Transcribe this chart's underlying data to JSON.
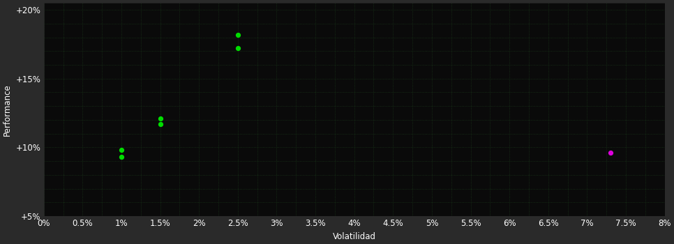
{
  "background_color": "#2a2a2a",
  "plot_bg_color": "#0a0a0a",
  "text_color": "#ffffff",
  "xlabel": "Volatilidad",
  "ylabel": "Performance",
  "xlim": [
    0.0,
    0.08
  ],
  "ylim": [
    0.05,
    0.205
  ],
  "x_ticks": [
    0.0,
    0.005,
    0.01,
    0.015,
    0.02,
    0.025,
    0.03,
    0.035,
    0.04,
    0.045,
    0.05,
    0.055,
    0.06,
    0.065,
    0.07,
    0.075,
    0.08
  ],
  "x_tick_labels": [
    "0%",
    "0.5%",
    "1%",
    "1.5%",
    "2%",
    "2.5%",
    "3%",
    "3.5%",
    "4%",
    "4.5%",
    "5%",
    "5.5%",
    "6%",
    "6.5%",
    "7%",
    "7.5%",
    "8%"
  ],
  "y_ticks": [
    0.05,
    0.1,
    0.15,
    0.2
  ],
  "y_tick_labels": [
    "+5%",
    "+10%",
    "+15%",
    "+20%"
  ],
  "green_points": [
    [
      0.01,
      0.098
    ],
    [
      0.01,
      0.093
    ],
    [
      0.015,
      0.121
    ],
    [
      0.015,
      0.117
    ],
    [
      0.025,
      0.182
    ],
    [
      0.025,
      0.172
    ]
  ],
  "magenta_points": [
    [
      0.073,
      0.096
    ]
  ],
  "green_color": "#00dd00",
  "magenta_color": "#dd00dd",
  "point_size": 18,
  "font_size": 8.5,
  "grid_color": "#1a3a1a",
  "grid_alpha": 0.9,
  "grid_linestyle": "dotted",
  "grid_linewidth": 0.6
}
